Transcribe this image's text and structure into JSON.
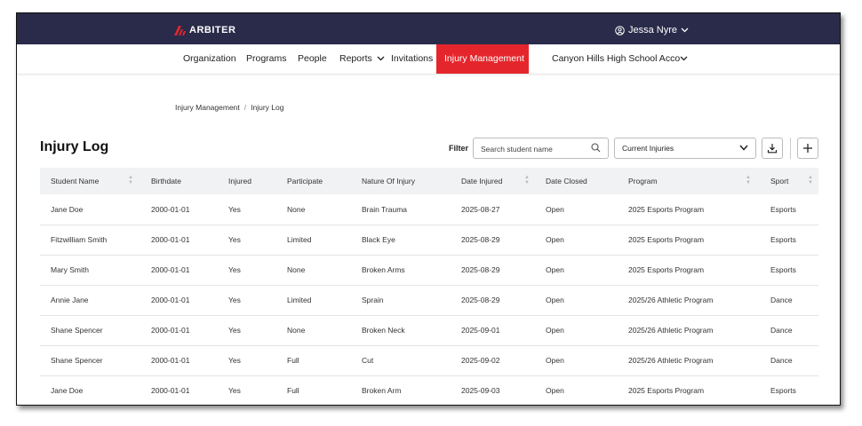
{
  "app": {
    "brand": "ARBITER",
    "user_name": "Jessa Nyre"
  },
  "nav": {
    "items": [
      {
        "label": "Organization"
      },
      {
        "label": "Programs"
      },
      {
        "label": "People"
      },
      {
        "label": "Reports"
      },
      {
        "label": "Invitations"
      },
      {
        "label": "Injury Management"
      }
    ],
    "active": "Injury Management",
    "account": "Canyon Hills High School Acco"
  },
  "breadcrumb": [
    "Injury Management",
    "Injury Log"
  ],
  "page": {
    "title": "Injury Log"
  },
  "filter": {
    "label": "Filter",
    "search_placeholder": "Search student name",
    "select_value": "Current Injuries"
  },
  "colors": {
    "topbar": "#2a2a4a",
    "accent": "#e4262c"
  },
  "table": {
    "columns": [
      "Student Name",
      "Birthdate",
      "Injured",
      "Participate",
      "Nature Of Injury",
      "Date Injured",
      "Date Closed",
      "Program",
      "Sport"
    ],
    "rows": [
      [
        "Jane Doe",
        "2000-01-01",
        "Yes",
        "None",
        "Brain Trauma",
        "2025-08-27",
        "Open",
        "2025 Esports Program",
        "Esports"
      ],
      [
        "Fitzwilliam Smith",
        "2000-01-01",
        "Yes",
        "Limited",
        "Black Eye",
        "2025-08-29",
        "Open",
        "2025 Esports Program",
        "Esports"
      ],
      [
        "Mary Smith",
        "2000-01-01",
        "Yes",
        "None",
        "Broken Arms",
        "2025-08-29",
        "Open",
        "2025 Esports Program",
        "Esports"
      ],
      [
        "Annie Jane",
        "2000-01-01",
        "Yes",
        "Limited",
        "Sprain",
        "2025-08-29",
        "Open",
        "2025/26 Athletic Program",
        "Dance"
      ],
      [
        "Shane Spencer",
        "2000-01-01",
        "Yes",
        "None",
        "Broken Neck",
        "2025-09-01",
        "Open",
        "2025/26 Athletic Program",
        "Dance"
      ],
      [
        "Shane Spencer",
        "2000-01-01",
        "Yes",
        "Full",
        "Cut",
        "2025-09-02",
        "Open",
        "2025/26 Athletic Program",
        "Dance"
      ],
      [
        "Jane Doe",
        "2000-01-01",
        "Yes",
        "Full",
        "Broken Arm",
        "2025-09-03",
        "Open",
        "2025 Esports Program",
        "Esports"
      ]
    ]
  }
}
